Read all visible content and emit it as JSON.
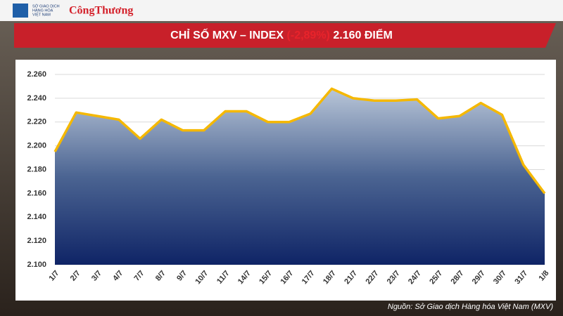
{
  "header": {
    "logo_text": [
      "SỞ GIAO DỊCH",
      "HÀNG HÓA",
      "VIỆT NAM"
    ],
    "brand": "CôngThương"
  },
  "chart_data": {
    "type": "area",
    "title": [
      "CHỈ SỐ MXV – INDEX",
      "(-2,89%)",
      "2.160 ĐIỂM"
    ],
    "categories": [
      "1/7",
      "2/7",
      "3/7",
      "4/7",
      "7/7",
      "8/7",
      "9/7",
      "10/7",
      "11/7",
      "14/7",
      "15/7",
      "16/7",
      "17/7",
      "18/7",
      "21/7",
      "22/7",
      "23/7",
      "24/7",
      "25/7",
      "28/7",
      "29/7",
      "30/7",
      "31/7",
      "1/8"
    ],
    "values": [
      2195,
      2228,
      2225,
      2222,
      2206,
      2222,
      2213,
      2213,
      2229,
      2229,
      2220,
      2220,
      2227,
      2248,
      2240,
      2238,
      2238,
      2239,
      2223,
      2225,
      2236,
      2226,
      2184,
      2160
    ],
    "color": "#f5b800",
    "ylim": [
      2100,
      2260
    ],
    "yticks": [
      {
        "value": 2100,
        "label": "2.100"
      },
      {
        "value": 2120,
        "label": "2.120"
      },
      {
        "value": 2140,
        "label": "2.140"
      },
      {
        "value": 2160,
        "label": "2.160"
      },
      {
        "value": 2180,
        "label": "2.180"
      },
      {
        "value": 2200,
        "label": "2.200"
      },
      {
        "value": 2220,
        "label": "2.220"
      },
      {
        "value": 2240,
        "label": "2.240"
      },
      {
        "value": 2260,
        "label": "2.260"
      }
    ],
    "grid": true,
    "source": "Nguồn: Sở Giao dịch Hàng hóa Việt Nam (MXV)"
  }
}
